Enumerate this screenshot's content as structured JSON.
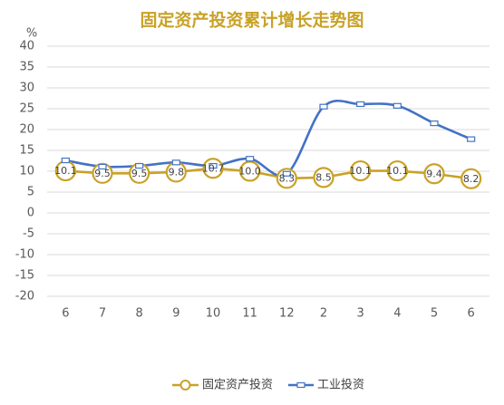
{
  "colors": {
    "title": "#C9A227",
    "tick_text": "#595959",
    "label_text": "#404040",
    "grid": "#D9D9D9",
    "background": "#FFFFFF"
  },
  "chart_data": {
    "type": "line",
    "title": "固定资产投资累计增长走势图",
    "ylabel": "%",
    "xlabel": "",
    "categories": [
      "6",
      "7",
      "8",
      "9",
      "10",
      "11",
      "12",
      "2",
      "3",
      "4",
      "5",
      "6"
    ],
    "ylim": [
      -20,
      40
    ],
    "yticks": [
      "40",
      "35",
      "30",
      "25",
      "20",
      "15",
      "10",
      "5",
      "0",
      "-5",
      "-10",
      "-15",
      "-20"
    ],
    "grid": true,
    "legend_position": "bottom",
    "series": [
      {
        "name": "固定资产投资",
        "color": "#C9A227",
        "marker": "circle",
        "smooth": false,
        "values": [
          10.1,
          9.5,
          9.5,
          9.8,
          10.7,
          10.0,
          8.3,
          8.5,
          10.1,
          10.1,
          9.4,
          8.2
        ],
        "data_labels": [
          "10.1",
          "9.5",
          "9.5",
          "9.8",
          "10.7",
          "10.0",
          "8.3",
          "8.5",
          "10.1",
          "10.1",
          "9.4",
          "8.2"
        ]
      },
      {
        "name": "工业投资",
        "color": "#4472C4",
        "marker": "square",
        "smooth": true,
        "values": [
          12.6,
          11.1,
          11.3,
          12.1,
          11.3,
          13.0,
          9.4,
          25.5,
          26.1,
          25.7,
          21.5,
          17.7
        ]
      }
    ]
  }
}
